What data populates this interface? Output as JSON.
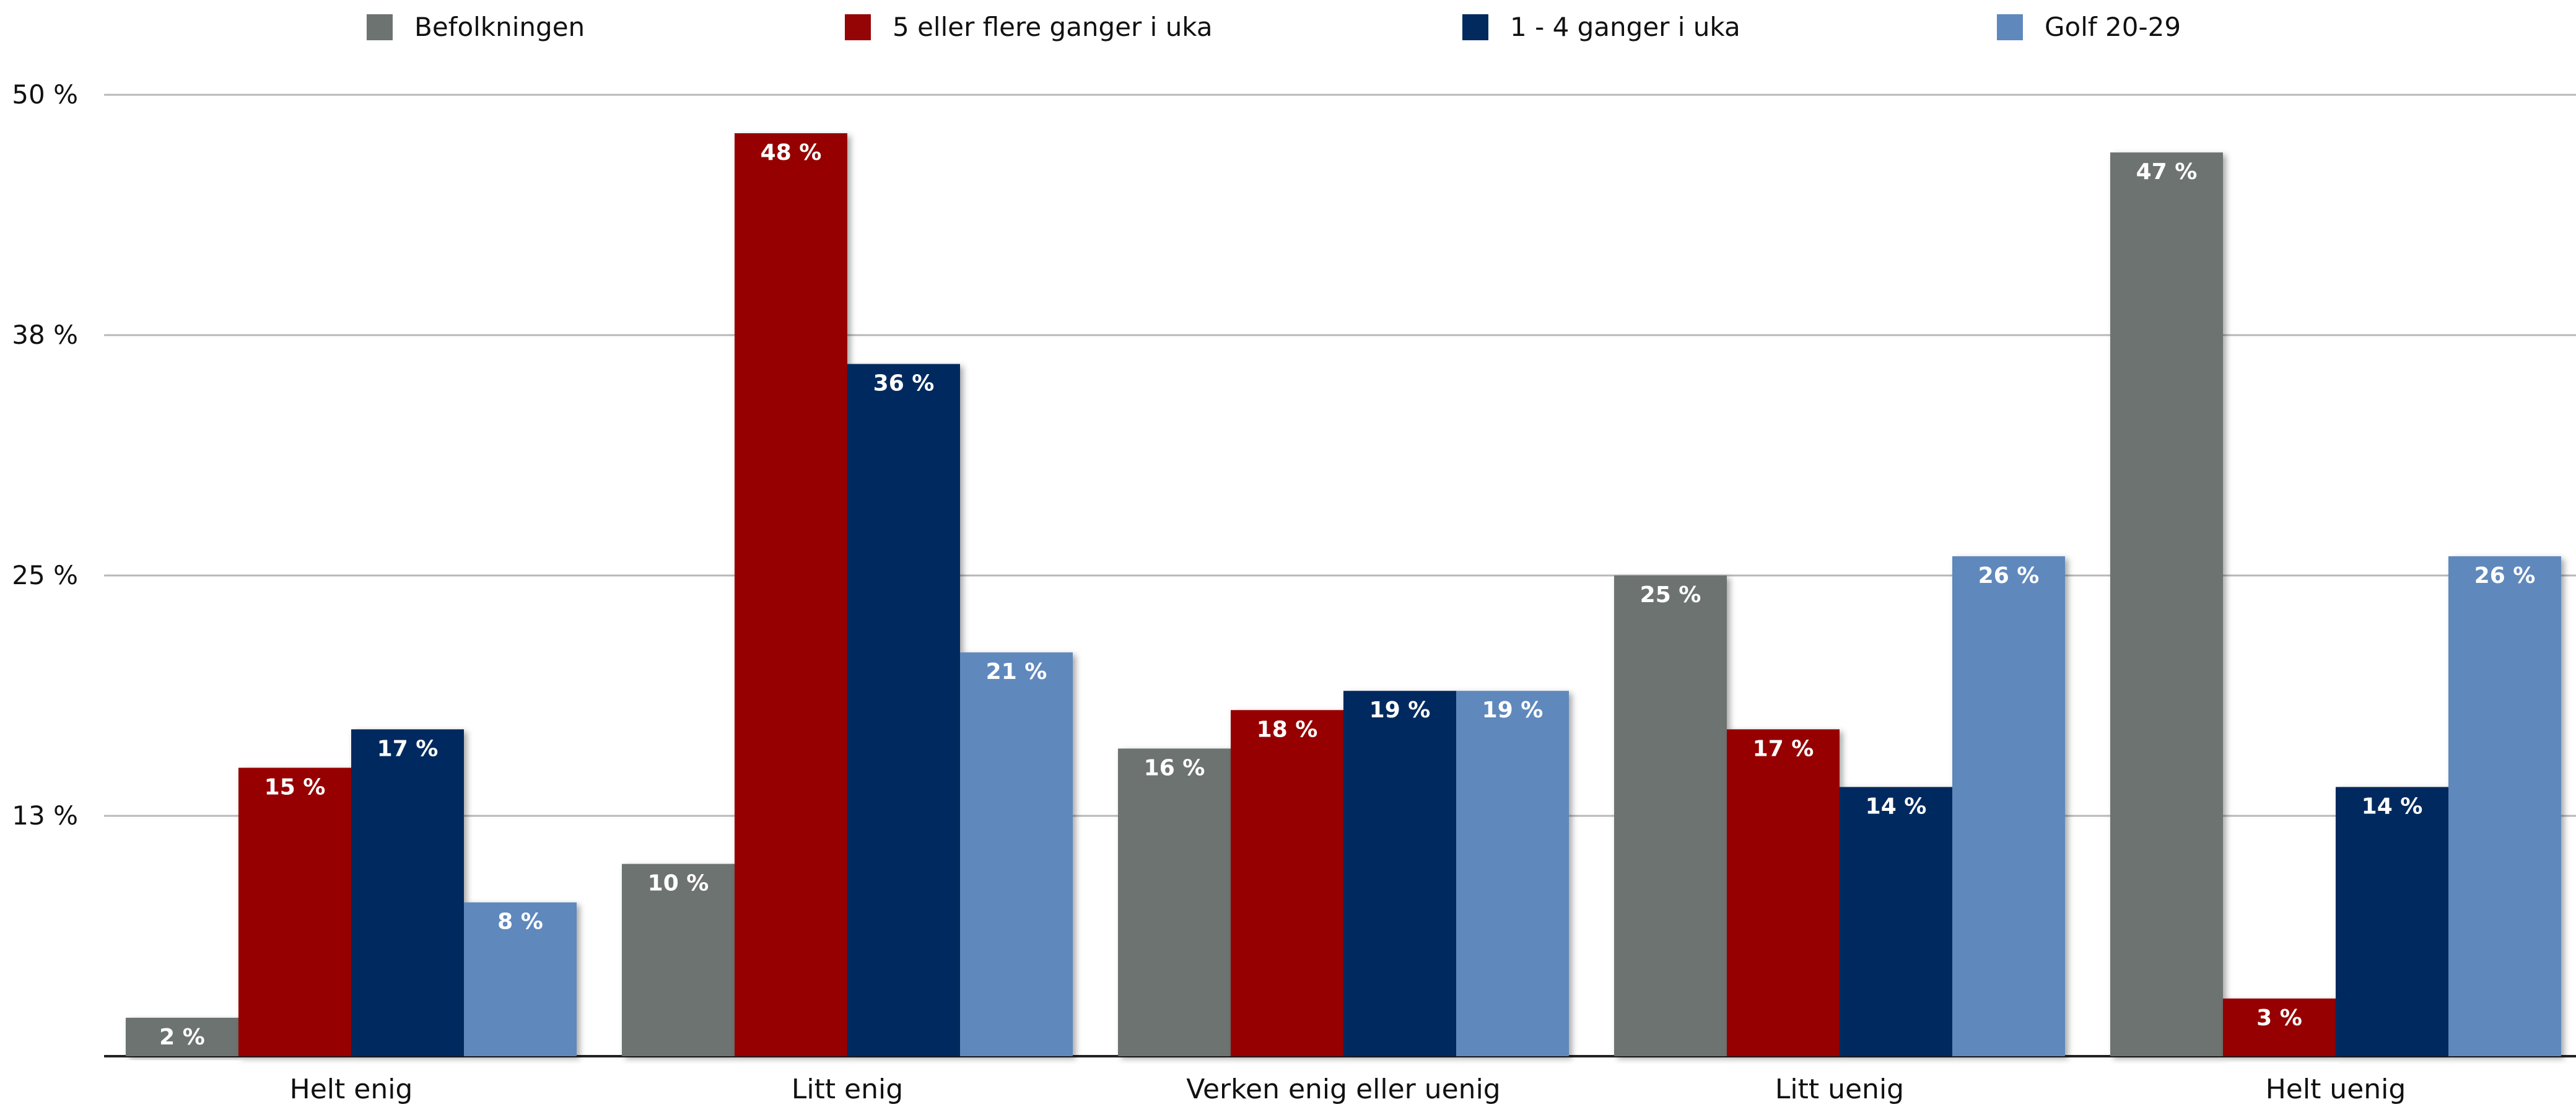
{
  "chart_data": {
    "type": "bar",
    "categories": [
      "Helt enig",
      "Litt enig",
      "Verken enig eller uenig",
      "Litt uenig",
      "Helt uenig"
    ],
    "series": [
      {
        "name": "Befolkningen",
        "color": "#6d7370",
        "values": [
          2,
          10,
          16,
          25,
          47
        ]
      },
      {
        "name": "5 eller flere ganger i uka",
        "color": "#960506",
        "values": [
          15,
          48,
          18,
          17,
          3
        ]
      },
      {
        "name": "1 - 4 ganger i uka",
        "color": "#022a5f",
        "values": [
          17,
          36,
          19,
          14,
          14
        ]
      },
      {
        "name": "Golf 20-29",
        "color": "#5f88bd",
        "values": [
          8,
          21,
          19,
          26,
          26
        ]
      }
    ],
    "value_labels": [
      [
        "2 %",
        "10 %",
        "16 %",
        "25 %",
        "47 %"
      ],
      [
        "15 %",
        "48 %",
        "18 %",
        "17 %",
        "3 %"
      ],
      [
        "17 %",
        "36 %",
        "19 %",
        "14 %",
        "14 %"
      ],
      [
        "8 %",
        "21 %",
        "19 %",
        "26 %",
        "26 %"
      ]
    ],
    "y_ticks": [
      {
        "value": 12.5,
        "label": "13 %"
      },
      {
        "value": 25,
        "label": "25 %"
      },
      {
        "value": 37.5,
        "label": "38 %"
      },
      {
        "value": 50,
        "label": "50 %"
      }
    ],
    "ylim": [
      0,
      50
    ],
    "grid": true,
    "legend_position": "top",
    "title": "",
    "xlabel": "",
    "ylabel": ""
  }
}
